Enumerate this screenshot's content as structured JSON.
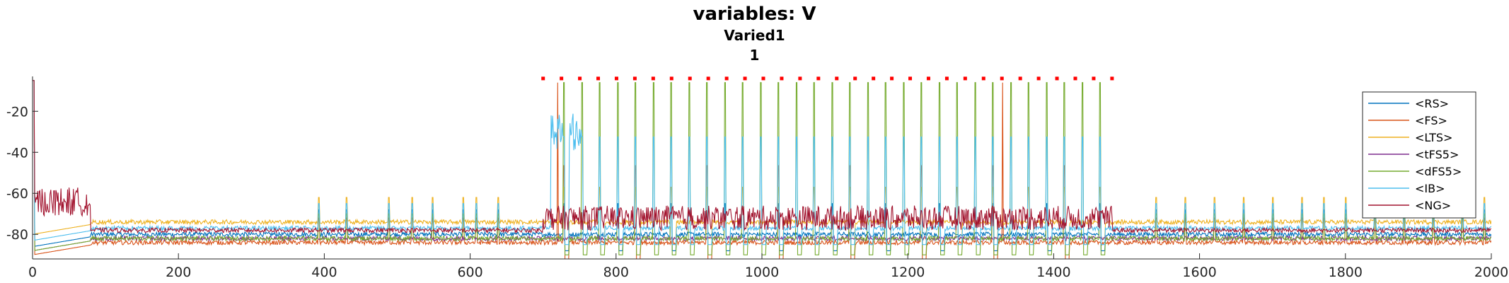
{
  "chart_data": {
    "type": "line",
    "title": "variables: V",
    "subtitle": "Varied1",
    "subtitle2": "1",
    "xlabel": "",
    "ylabel": "",
    "xlim": [
      0,
      2000
    ],
    "ylim": [
      -92,
      -3
    ],
    "xticks": [
      0,
      200,
      400,
      600,
      800,
      1000,
      1200,
      1400,
      1600,
      1800,
      2000
    ],
    "yticks": [
      -20,
      -40,
      -60,
      -80
    ],
    "grid": false,
    "legend_position": "right",
    "stimulus_marker": {
      "x_start": 700,
      "x_end": 1480,
      "y": -4,
      "count": 32,
      "color": "#ff0000"
    },
    "series": [
      {
        "name": "<RS>",
        "color": "#0072bd",
        "baseline": -80,
        "spike_peak": -65,
        "spike_every": 3
      },
      {
        "name": "<FS>",
        "color": "#d95319",
        "baseline": -84,
        "spike_peak": -48,
        "spike_every": 4
      },
      {
        "name": "<LTS>",
        "color": "#edb120",
        "baseline": -74,
        "spike_peak": -60,
        "spike_every": 2
      },
      {
        "name": "<tFS5>",
        "color": "#7e2f8e",
        "baseline": -82,
        "spike_peak": -82,
        "spike_every": 0
      },
      {
        "name": "<dFS5>",
        "color": "#77ac30",
        "baseline": -82,
        "spike_peak": -12,
        "spike_every": 1
      },
      {
        "name": "<IB>",
        "color": "#4dbeee",
        "baseline": -77,
        "spike_peak": -40,
        "spike_every": 1
      },
      {
        "name": "<NG>",
        "color": "#a2142f",
        "baseline": -78,
        "spike_peak": -68,
        "spike_every": 0
      }
    ]
  }
}
